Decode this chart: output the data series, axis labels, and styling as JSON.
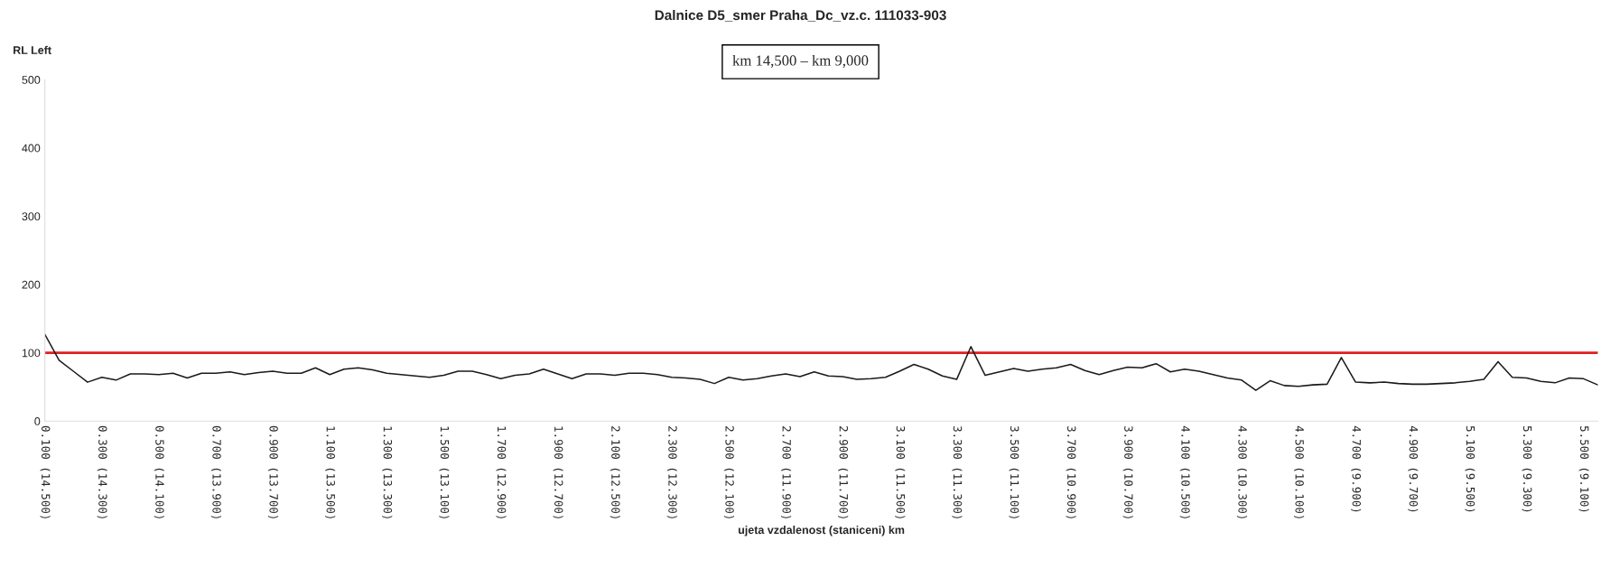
{
  "chart_data": {
    "type": "line",
    "title": "Dalnice D5_smer Praha_Dc_vz.c. 111033-903",
    "subtitle": "km 14,500 – km 9,000",
    "xlabel": "ujeta vzdalenost (staniceni) km",
    "ylabel": "RL Left",
    "ylim": [
      0,
      500
    ],
    "yticks": [
      0,
      100,
      200,
      300,
      400,
      500
    ],
    "categories": [
      "0.100 (14.500)",
      null,
      null,
      null,
      "0.300 (14.300)",
      null,
      null,
      null,
      "0.500 (14.100)",
      null,
      null,
      null,
      "0.700 (13.900)",
      null,
      null,
      null,
      "0.900 (13.700)",
      null,
      null,
      null,
      "1.100 (13.500)",
      null,
      null,
      null,
      "1.300 (13.300)",
      null,
      null,
      null,
      "1.500 (13.100)",
      null,
      null,
      null,
      "1.700 (12.900)",
      null,
      null,
      null,
      "1.900 (12.700)",
      null,
      null,
      null,
      "2.100 (12.500)",
      null,
      null,
      null,
      "2.300 (12.300)",
      null,
      null,
      null,
      "2.500 (12.100)",
      null,
      null,
      null,
      "2.700 (11.900)",
      null,
      null,
      null,
      "2.900 (11.700)",
      null,
      null,
      null,
      "3.100 (11.500)",
      null,
      null,
      null,
      "3.300 (11.300)",
      null,
      null,
      null,
      "3.500 (11.100)",
      null,
      null,
      null,
      "3.700 (10.900)",
      null,
      null,
      null,
      "3.900 (10.700)",
      null,
      null,
      null,
      "4.100 (10.500)",
      null,
      null,
      null,
      "4.300 (10.300)",
      null,
      null,
      null,
      "4.500 (10.100)",
      null,
      null,
      null,
      "4.700 (9.900)",
      null,
      null,
      null,
      "4.900 (9.700)",
      null,
      null,
      null,
      "5.100 (9.500)",
      null,
      null,
      null,
      "5.300 (9.300)",
      null,
      null,
      null,
      "5.500 (9.100)",
      null
    ],
    "ref_lines": [
      {
        "axis": "y",
        "value": 100,
        "color": "#e02020"
      }
    ],
    "grid": false,
    "legend": false,
    "marker": "none",
    "line_style": "solid",
    "series": [
      {
        "color": "#1a1a1a",
        "values": [
          127,
          89,
          73,
          57,
          64,
          60,
          69,
          69,
          68,
          70,
          63,
          70,
          70,
          72,
          68,
          71,
          73,
          70,
          70,
          78,
          68,
          76,
          78,
          75,
          70,
          68,
          66,
          64,
          67,
          73,
          73,
          68,
          62,
          67,
          69,
          76,
          69,
          62,
          69,
          69,
          67,
          70,
          70,
          68,
          64,
          63,
          61,
          55,
          64,
          60,
          62,
          66,
          69,
          65,
          72,
          66,
          65,
          61,
          62,
          64,
          73,
          83,
          76,
          66,
          61,
          109,
          67,
          72,
          77,
          73,
          76,
          78,
          83,
          74,
          68,
          74,
          79,
          78,
          84,
          72,
          76,
          73,
          68,
          63,
          60,
          45,
          59,
          52,
          51,
          53,
          54,
          93,
          57,
          56,
          57,
          55,
          54,
          54,
          55,
          56,
          58,
          61,
          87,
          64,
          63,
          58,
          56,
          63,
          62,
          53
        ]
      }
    ]
  }
}
